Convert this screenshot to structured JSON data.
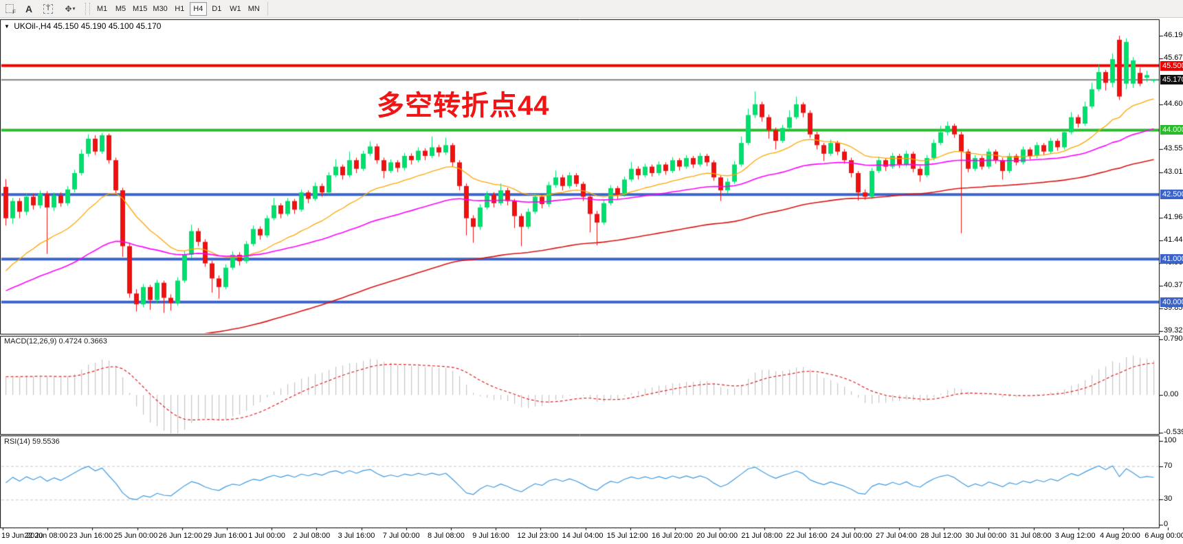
{
  "header": {
    "dropdown_glyph": "▼",
    "symbol_period": "UKOil-,H4",
    "ohlc": "45.150 45.190 45.100 45.170"
  },
  "toolbar": {
    "tools": [
      {
        "id": "fibo",
        "glyph": "F"
      },
      {
        "id": "text-label",
        "glyph": "A"
      },
      {
        "id": "text-box",
        "glyph": "T"
      },
      {
        "id": "shapes",
        "glyph": "✥",
        "caret": "▾"
      }
    ],
    "timeframes": [
      "M1",
      "M5",
      "M15",
      "M30",
      "H1",
      "H4",
      "D1",
      "W1",
      "MN"
    ],
    "active_timeframe": "H4"
  },
  "annotation": {
    "text": "多空转折点44",
    "color": "#f01414"
  },
  "indicators": {
    "macd_label": "MACD(12,26,9) 0.4724 0.3663",
    "rsi_label": "RSI(14) 59.5536"
  },
  "axes": {
    "price_ticks": [
      {
        "label": "46.195",
        "value": 46.195
      },
      {
        "label": "45.670",
        "value": 45.67
      },
      {
        "label": "44.605",
        "value": 44.605
      },
      {
        "label": "43.555",
        "value": 43.555
      },
      {
        "label": "43.015",
        "value": 43.015
      },
      {
        "label": "41.965",
        "value": 41.965
      },
      {
        "label": "41.440",
        "value": 41.44
      },
      {
        "label": "40.900",
        "value": 40.9
      },
      {
        "label": "40.375",
        "value": 40.375
      },
      {
        "label": "39.850",
        "value": 39.85
      },
      {
        "label": "39.325",
        "value": 39.325
      }
    ],
    "macd_ticks": [
      {
        "label": "0.7904",
        "value": 0.7904
      },
      {
        "label": "0.00",
        "value": 0.0
      },
      {
        "label": "-0.5399",
        "value": -0.5399
      }
    ],
    "rsi_ticks": [
      {
        "label": "100",
        "value": 100
      },
      {
        "label": "70",
        "value": 70
      },
      {
        "label": "30",
        "value": 30
      },
      {
        "label": "0",
        "value": 0
      }
    ],
    "time_labels": [
      "19 Jun 2020",
      "22 Jun 08:00",
      "23 Jun 16:00",
      "25 Jun 00:00",
      "26 Jun 12:00",
      "29 Jun 16:00",
      "1 Jul 00:00",
      "2 Jul 08:00",
      "3 Jul 16:00",
      "7 Jul 00:00",
      "8 Jul 08:00",
      "9 Jul 16:00",
      "12 Jul 23:00",
      "14 Jul 04:00",
      "15 Jul 12:00",
      "16 Jul 20:00",
      "20 Jul 00:00",
      "21 Jul 08:00",
      "22 Jul 16:00",
      "24 Jul 00:00",
      "27 Jul 04:00",
      "28 Jul 12:00",
      "30 Jul 00:00",
      "31 Jul 08:00",
      "3 Aug 12:00",
      "4 Aug 20:00",
      "6 Aug 00:00"
    ]
  },
  "price_badges": [
    {
      "label": "45.500",
      "value": 45.5,
      "bg": "#ee0000"
    },
    {
      "label": "45.170",
      "value": 45.17,
      "bg": "#111111"
    },
    {
      "label": "44.000",
      "value": 44.0,
      "bg": "#2db92d"
    },
    {
      "label": "42.500",
      "value": 42.5,
      "bg": "#3c64c8"
    },
    {
      "label": "41.000",
      "value": 41.0,
      "bg": "#3c64c8"
    },
    {
      "label": "40.000",
      "value": 40.0,
      "bg": "#3c64c8"
    }
  ],
  "colors": {
    "bull": "#00df6e",
    "bear": "#ee1111",
    "ma_fast": "#ffa500",
    "ma_mid": "#ff00ff",
    "ma_slow": "#dd1111",
    "line_current": "#808080",
    "macd_hist": "#c6c6c6",
    "macd_signal": "#e02020",
    "rsi_line": "#3d9ae1",
    "rsi_level": "#c8c8c8",
    "pane_border": "#000000",
    "background": "#ffffff"
  },
  "chart_data": {
    "type": "candlestick",
    "symbol": "UKOil-",
    "timeframe": "H4",
    "title": "UKOil- H4 with MACD(12,26,9) and RSI(14)",
    "price_range_visible": [
      39.325,
      46.195
    ],
    "current_bar": {
      "open": 45.15,
      "high": 45.19,
      "low": 45.1,
      "close": 45.17
    },
    "horizontal_lines": [
      {
        "value": 45.5,
        "color": "#ee0000",
        "width": 4
      },
      {
        "value": 44.0,
        "color": "#2db92d",
        "width": 4
      },
      {
        "value": 42.5,
        "color": "#3c64c8",
        "width": 4
      },
      {
        "value": 41.0,
        "color": "#3c64c8",
        "width": 4
      },
      {
        "value": 40.0,
        "color": "#3c64c8",
        "width": 4
      },
      {
        "value": 45.17,
        "color": "#808080",
        "width": 2,
        "role": "current-price"
      }
    ],
    "overlays": [
      {
        "name": "ema-fast",
        "color": "#ffa500",
        "period": 20,
        "seed": 40.6,
        "width": 1.3
      },
      {
        "name": "ema-mid",
        "color": "#ff00ff",
        "period": 55,
        "seed": 40.2,
        "width": 1.6
      },
      {
        "name": "ema-slow",
        "color": "#dd1111",
        "period": 110,
        "seed": 37.5,
        "width": 1.6
      }
    ],
    "indicator_params": {
      "macd": {
        "fast": 12,
        "slow": 26,
        "signal": 9,
        "value_main": 0.4724,
        "value_signal": 0.3663,
        "seed_slow_offset": -0.28,
        "seed_signal": 0.26
      },
      "rsi": {
        "period": 14,
        "value": 59.5536,
        "levels": [
          70,
          30
        ]
      }
    },
    "candles": [
      [
        42.68,
        42.86,
        41.78,
        41.95
      ],
      [
        41.95,
        42.42,
        41.82,
        42.35
      ],
      [
        42.35,
        42.42,
        41.95,
        42.1
      ],
      [
        42.1,
        42.52,
        42.02,
        42.45
      ],
      [
        42.45,
        42.52,
        42.15,
        42.25
      ],
      [
        42.25,
        42.6,
        42.18,
        42.52
      ],
      [
        42.52,
        42.58,
        41.12,
        42.2
      ],
      [
        42.2,
        42.55,
        42.12,
        42.48
      ],
      [
        42.48,
        42.55,
        42.22,
        42.3
      ],
      [
        42.3,
        42.7,
        42.24,
        42.62
      ],
      [
        42.62,
        43.08,
        42.55,
        43.0
      ],
      [
        43.0,
        43.55,
        42.95,
        43.45
      ],
      [
        43.45,
        43.9,
        43.38,
        43.8
      ],
      [
        43.8,
        43.88,
        43.42,
        43.5
      ],
      [
        43.5,
        43.93,
        43.45,
        43.88
      ],
      [
        43.88,
        43.92,
        43.22,
        43.3
      ],
      [
        43.3,
        43.36,
        42.5,
        42.6
      ],
      [
        42.6,
        42.66,
        41.05,
        41.3
      ],
      [
        41.3,
        41.38,
        40.1,
        40.2
      ],
      [
        40.2,
        40.3,
        39.78,
        39.95
      ],
      [
        39.95,
        40.42,
        39.88,
        40.35
      ],
      [
        40.35,
        40.4,
        39.82,
        40.05
      ],
      [
        40.05,
        40.52,
        39.98,
        40.45
      ],
      [
        40.45,
        40.5,
        39.75,
        40.1
      ],
      [
        40.1,
        40.18,
        39.8,
        39.98
      ],
      [
        39.98,
        40.58,
        39.92,
        40.5
      ],
      [
        40.5,
        41.18,
        40.45,
        41.1
      ],
      [
        41.1,
        41.8,
        41.02,
        41.65
      ],
      [
        41.65,
        41.72,
        41.3,
        41.4
      ],
      [
        41.4,
        41.46,
        40.82,
        40.9
      ],
      [
        40.9,
        40.96,
        40.22,
        40.55
      ],
      [
        40.55,
        40.62,
        40.08,
        40.35
      ],
      [
        40.35,
        40.88,
        40.3,
        40.8
      ],
      [
        40.8,
        41.18,
        40.75,
        41.1
      ],
      [
        41.1,
        41.16,
        40.85,
        40.95
      ],
      [
        40.95,
        41.42,
        40.9,
        41.35
      ],
      [
        41.35,
        41.78,
        41.3,
        41.7
      ],
      [
        41.7,
        41.76,
        41.45,
        41.55
      ],
      [
        41.55,
        42.02,
        41.5,
        41.95
      ],
      [
        41.95,
        42.42,
        41.9,
        42.25
      ],
      [
        42.25,
        42.3,
        41.95,
        42.05
      ],
      [
        42.05,
        42.42,
        42.0,
        42.35
      ],
      [
        42.35,
        42.4,
        42.05,
        42.15
      ],
      [
        42.15,
        42.62,
        42.1,
        42.55
      ],
      [
        42.55,
        42.6,
        42.3,
        42.4
      ],
      [
        42.4,
        42.78,
        42.35,
        42.7
      ],
      [
        42.7,
        42.76,
        42.45,
        42.55
      ],
      [
        42.55,
        43.02,
        42.5,
        42.95
      ],
      [
        42.95,
        43.32,
        42.9,
        43.15
      ],
      [
        43.15,
        43.2,
        42.85,
        42.95
      ],
      [
        42.95,
        43.5,
        42.9,
        43.3
      ],
      [
        43.3,
        43.36,
        43.0,
        43.1
      ],
      [
        43.1,
        43.52,
        43.05,
        43.45
      ],
      [
        43.45,
        43.74,
        43.4,
        43.62
      ],
      [
        43.62,
        43.68,
        43.22,
        43.3
      ],
      [
        43.3,
        43.36,
        42.88,
        43.05
      ],
      [
        43.05,
        43.32,
        43.0,
        43.25
      ],
      [
        43.25,
        43.3,
        43.02,
        43.12
      ],
      [
        43.12,
        43.47,
        43.06,
        43.4
      ],
      [
        43.4,
        43.46,
        43.2,
        43.3
      ],
      [
        43.3,
        43.6,
        43.25,
        43.52
      ],
      [
        43.52,
        43.58,
        43.3,
        43.4
      ],
      [
        43.4,
        43.85,
        43.35,
        43.6
      ],
      [
        43.6,
        43.66,
        43.38,
        43.48
      ],
      [
        43.48,
        43.82,
        43.42,
        43.65
      ],
      [
        43.65,
        43.7,
        43.15,
        43.25
      ],
      [
        43.25,
        43.3,
        42.6,
        42.7
      ],
      [
        42.7,
        42.76,
        41.55,
        41.95
      ],
      [
        41.95,
        42.02,
        41.38,
        41.75
      ],
      [
        41.75,
        42.28,
        41.68,
        42.2
      ],
      [
        42.2,
        42.58,
        42.15,
        42.5
      ],
      [
        42.5,
        42.56,
        42.2,
        42.3
      ],
      [
        42.3,
        42.76,
        42.25,
        42.6
      ],
      [
        42.6,
        42.66,
        42.25,
        42.35
      ],
      [
        42.35,
        42.4,
        41.72,
        42.0
      ],
      [
        42.0,
        42.06,
        41.3,
        41.75
      ],
      [
        41.75,
        42.18,
        41.7,
        42.1
      ],
      [
        42.1,
        42.52,
        42.05,
        42.45
      ],
      [
        42.45,
        42.5,
        42.18,
        42.28
      ],
      [
        42.28,
        42.8,
        42.22,
        42.72
      ],
      [
        42.72,
        43.06,
        42.66,
        42.9
      ],
      [
        42.9,
        42.96,
        42.6,
        42.7
      ],
      [
        42.7,
        43.02,
        42.65,
        42.95
      ],
      [
        42.95,
        43.0,
        42.68,
        42.75
      ],
      [
        42.75,
        42.8,
        42.35,
        42.45
      ],
      [
        42.45,
        42.5,
        41.62,
        42.05
      ],
      [
        42.05,
        42.12,
        41.32,
        41.85
      ],
      [
        41.85,
        42.38,
        41.8,
        42.3
      ],
      [
        42.3,
        42.72,
        42.25,
        42.65
      ],
      [
        42.65,
        42.7,
        42.4,
        42.5
      ],
      [
        42.5,
        42.92,
        42.45,
        42.85
      ],
      [
        42.85,
        43.26,
        42.8,
        43.1
      ],
      [
        43.1,
        43.16,
        42.85,
        42.95
      ],
      [
        42.95,
        43.22,
        42.9,
        43.15
      ],
      [
        43.15,
        43.2,
        42.92,
        43.0
      ],
      [
        43.0,
        43.27,
        42.95,
        43.2
      ],
      [
        43.2,
        43.25,
        42.96,
        43.05
      ],
      [
        43.05,
        43.37,
        43.0,
        43.3
      ],
      [
        43.3,
        43.35,
        43.06,
        43.15
      ],
      [
        43.15,
        43.42,
        43.1,
        43.35
      ],
      [
        43.35,
        43.4,
        43.12,
        43.2
      ],
      [
        43.2,
        43.47,
        43.15,
        43.4
      ],
      [
        43.4,
        43.45,
        43.16,
        43.25
      ],
      [
        43.25,
        43.3,
        42.82,
        42.9
      ],
      [
        42.9,
        42.95,
        42.35,
        42.6
      ],
      [
        42.6,
        42.88,
        42.52,
        42.8
      ],
      [
        42.8,
        43.28,
        42.75,
        43.2
      ],
      [
        43.2,
        43.85,
        43.15,
        43.7
      ],
      [
        43.7,
        44.5,
        43.65,
        44.35
      ],
      [
        44.35,
        44.9,
        44.28,
        44.6
      ],
      [
        44.6,
        44.66,
        44.2,
        44.3
      ],
      [
        44.3,
        44.36,
        43.8,
        44.0
      ],
      [
        44.0,
        44.06,
        43.55,
        43.75
      ],
      [
        43.75,
        44.12,
        43.7,
        44.05
      ],
      [
        44.05,
        44.46,
        44.0,
        44.3
      ],
      [
        44.3,
        44.78,
        44.25,
        44.6
      ],
      [
        44.6,
        44.65,
        44.3,
        44.4
      ],
      [
        44.4,
        44.46,
        43.82,
        43.9
      ],
      [
        43.9,
        43.96,
        43.55,
        43.65
      ],
      [
        43.65,
        43.7,
        43.28,
        43.45
      ],
      [
        43.45,
        43.78,
        43.4,
        43.7
      ],
      [
        43.7,
        43.75,
        43.42,
        43.5
      ],
      [
        43.5,
        43.56,
        43.22,
        43.3
      ],
      [
        43.3,
        43.36,
        42.9,
        43.0
      ],
      [
        43.0,
        43.05,
        42.36,
        42.55
      ],
      [
        42.55,
        42.62,
        42.38,
        42.45
      ],
      [
        42.45,
        43.12,
        42.4,
        43.05
      ],
      [
        43.05,
        43.38,
        43.0,
        43.3
      ],
      [
        43.3,
        43.35,
        43.05,
        43.15
      ],
      [
        43.15,
        43.47,
        43.1,
        43.4
      ],
      [
        43.4,
        43.45,
        43.12,
        43.2
      ],
      [
        43.2,
        43.52,
        43.15,
        43.45
      ],
      [
        43.45,
        43.5,
        43.02,
        43.1
      ],
      [
        43.1,
        43.16,
        42.8,
        42.95
      ],
      [
        42.95,
        43.42,
        42.9,
        43.35
      ],
      [
        43.35,
        43.78,
        43.3,
        43.7
      ],
      [
        43.7,
        44.1,
        43.65,
        43.95
      ],
      [
        43.95,
        44.2,
        43.88,
        44.1
      ],
      [
        44.1,
        44.15,
        43.82,
        43.9
      ],
      [
        43.9,
        43.96,
        41.6,
        43.5
      ],
      [
        43.5,
        43.56,
        43.02,
        43.1
      ],
      [
        43.1,
        43.42,
        43.05,
        43.35
      ],
      [
        43.35,
        43.4,
        43.08,
        43.15
      ],
      [
        43.15,
        43.57,
        43.1,
        43.5
      ],
      [
        43.5,
        43.55,
        43.22,
        43.3
      ],
      [
        43.3,
        43.36,
        42.85,
        43.05
      ],
      [
        43.05,
        43.47,
        43.0,
        43.4
      ],
      [
        43.4,
        43.45,
        43.18,
        43.25
      ],
      [
        43.25,
        43.62,
        43.2,
        43.55
      ],
      [
        43.55,
        43.6,
        43.32,
        43.4
      ],
      [
        43.4,
        43.72,
        43.35,
        43.65
      ],
      [
        43.65,
        43.7,
        43.42,
        43.5
      ],
      [
        43.5,
        43.82,
        43.45,
        43.75
      ],
      [
        43.75,
        43.8,
        43.52,
        43.6
      ],
      [
        43.6,
        44.02,
        43.55,
        43.95
      ],
      [
        43.95,
        44.42,
        43.9,
        44.3
      ],
      [
        44.3,
        44.36,
        44.06,
        44.15
      ],
      [
        44.15,
        44.66,
        44.1,
        44.55
      ],
      [
        44.55,
        45.1,
        44.5,
        44.95
      ],
      [
        44.95,
        45.52,
        44.9,
        45.35
      ],
      [
        45.35,
        45.4,
        44.92,
        45.1
      ],
      [
        45.1,
        45.78,
        45.0,
        45.65
      ],
      [
        46.1,
        46.195,
        44.7,
        44.78
      ],
      [
        45.08,
        46.13,
        44.95,
        46.05
      ],
      [
        45.08,
        45.7,
        44.98,
        45.62
      ],
      [
        45.33,
        45.45,
        45.02,
        45.08
      ],
      [
        45.22,
        45.38,
        45.12,
        45.28
      ],
      [
        45.15,
        45.19,
        45.1,
        45.17
      ]
    ]
  }
}
